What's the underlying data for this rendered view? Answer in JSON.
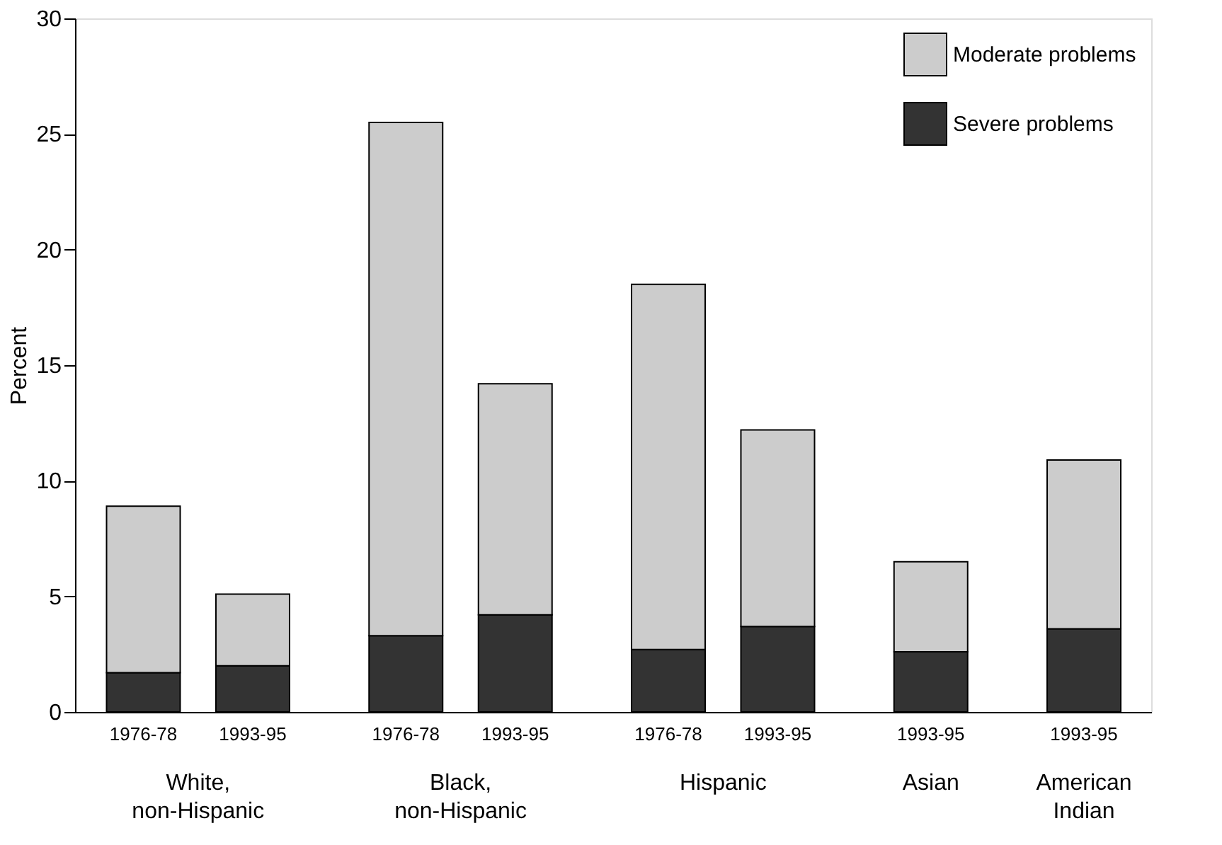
{
  "chart_data": {
    "type": "bar",
    "stacked": true,
    "ylabel": "Percent",
    "categories": [
      "1976-78",
      "1993-95",
      "1976-78",
      "1993-95",
      "1976-78",
      "1993-95",
      "1993-95",
      "1993-95"
    ],
    "annotations": [
      "White,\nnon-Hispanic",
      "Black,\nnon-Hispanic",
      "Hispanic",
      "Asian",
      "American\nIndian"
    ],
    "series": [
      {
        "name": "Severe problems",
        "color": "#333333",
        "values": [
          1.7,
          2.0,
          3.3,
          4.2,
          2.7,
          3.7,
          2.6,
          3.6
        ]
      },
      {
        "name": "Moderate problems",
        "color": "#cccccc",
        "values": [
          7.2,
          3.1,
          22.2,
          10.0,
          15.8,
          8.5,
          3.9,
          7.3
        ]
      }
    ],
    "ylim": [
      0,
      30
    ],
    "yticks": [
      0,
      5,
      10,
      15,
      20,
      25,
      30
    ],
    "grid": false,
    "legend": "top right"
  }
}
